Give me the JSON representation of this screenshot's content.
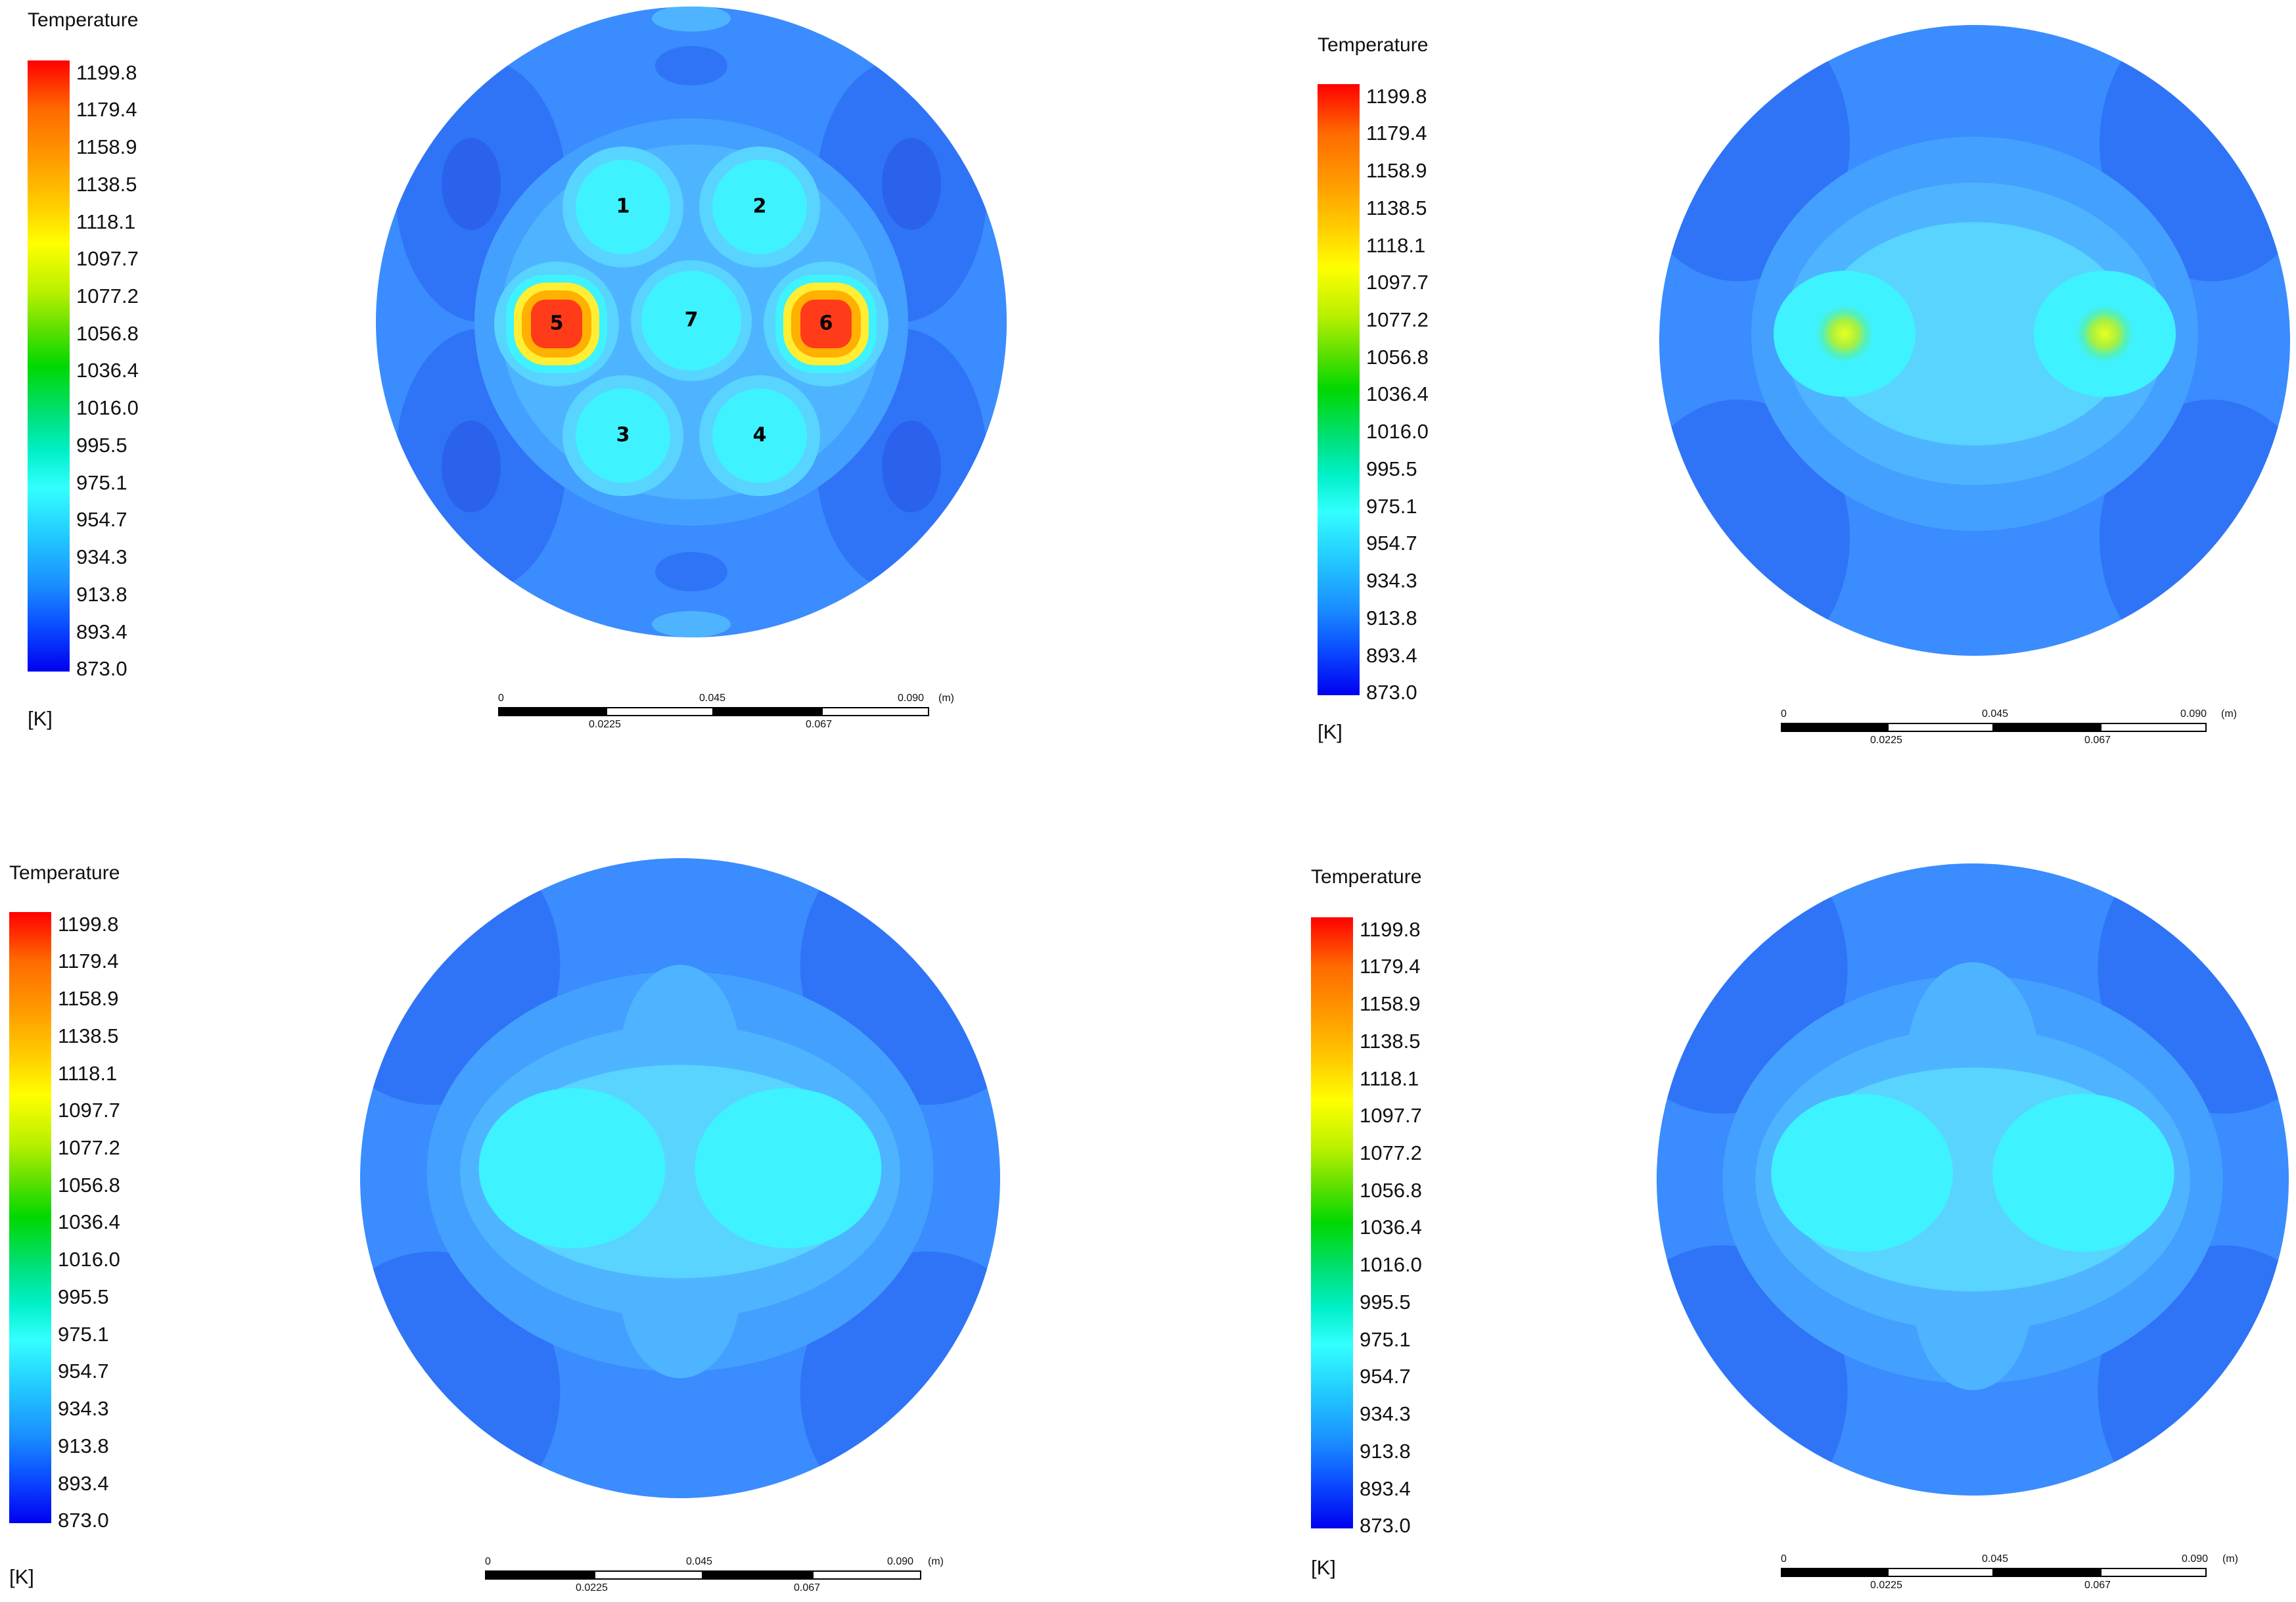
{
  "legend": {
    "title": "Temperature",
    "unit": "[K]",
    "ticks": [
      "1199.8",
      "1179.4",
      "1158.9",
      "1138.5",
      "1118.1",
      "1097.7",
      "1077.2",
      "1056.8",
      "1036.4",
      "1016.0",
      "995.5",
      "975.1",
      "954.7",
      "934.3",
      "913.8",
      "893.4",
      "873.0"
    ]
  },
  "scale_bar": {
    "top_labels": [
      "0",
      "0.045",
      "0.090"
    ],
    "unit": "(m)",
    "bottom_labels": [
      "0.0225",
      "0.067"
    ]
  },
  "rod_labels": [
    "1",
    "2",
    "3",
    "4",
    "5",
    "6",
    "7"
  ],
  "colors": {
    "background_field": "#3a8cff",
    "cold_region": "#2a6ef4",
    "warm_rod": "#3ff2ff",
    "hot_rod": "#ff3b1a",
    "hot_rod_ring": "#ffee33"
  }
}
